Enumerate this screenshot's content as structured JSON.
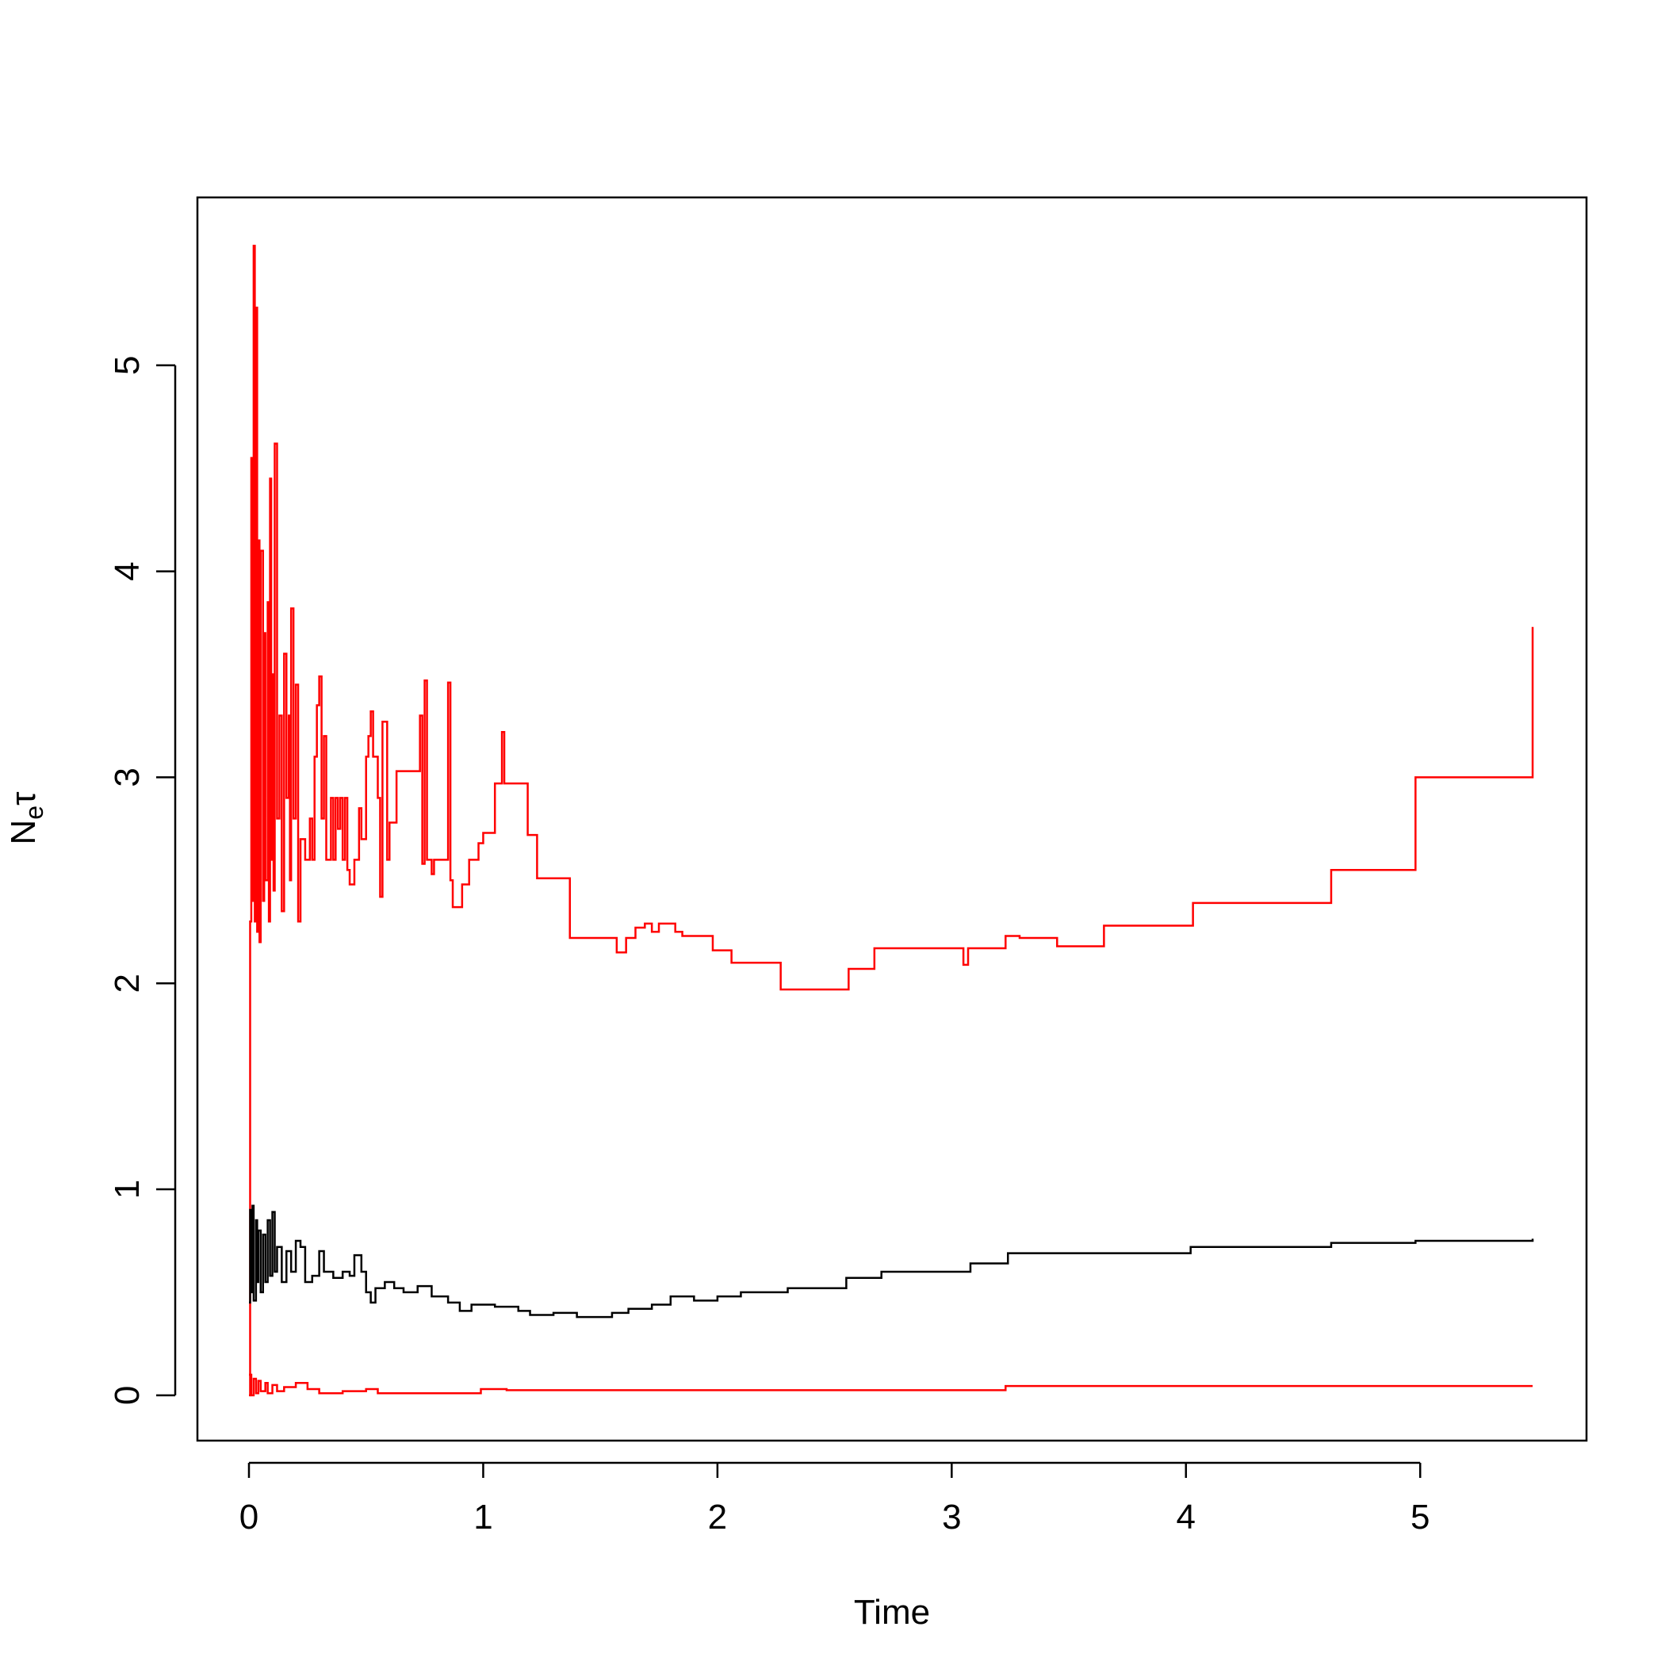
{
  "chart_data": {
    "type": "step",
    "xlabel": "Time",
    "ylabel": [
      "N",
      "e",
      "τ"
    ],
    "xlim": [
      -0.22,
      5.71
    ],
    "ylim": [
      -0.22,
      5.815
    ],
    "xticks": [
      0,
      1,
      2,
      3,
      4,
      5
    ],
    "yticks": [
      0,
      1,
      2,
      3,
      4,
      5
    ],
    "series": [
      {
        "color": "#ff0000",
        "x": [
          0,
          0.005,
          0.01,
          0.015,
          0.02,
          0.025,
          0.03,
          0.035,
          0.04,
          0.045,
          0.05,
          0.06,
          0.065,
          0.07,
          0.08,
          0.085,
          0.09,
          0.095,
          0.1,
          0.105,
          0.11,
          0.12,
          0.13,
          0.14,
          0.15,
          0.16,
          0.17,
          0.175,
          0.18,
          0.19,
          0.2,
          0.21,
          0.22,
          0.24,
          0.26,
          0.27,
          0.28,
          0.29,
          0.3,
          0.31,
          0.32,
          0.33,
          0.35,
          0.36,
          0.37,
          0.38,
          0.39,
          0.4,
          0.41,
          0.42,
          0.43,
          0.45,
          0.47,
          0.48,
          0.5,
          0.51,
          0.52,
          0.53,
          0.55,
          0.56,
          0.57,
          0.59,
          0.6,
          0.63,
          0.73,
          0.74,
          0.75,
          0.76,
          0.78,
          0.79,
          0.85,
          0.86,
          0.87,
          0.91,
          0.94,
          0.98,
          1.0,
          1.05,
          1.08,
          1.09,
          1.19,
          1.23,
          1.37,
          1.57,
          1.61,
          1.65,
          1.69,
          1.72,
          1.75,
          1.82,
          1.85,
          1.98,
          2.06,
          2.27,
          2.56,
          2.67,
          3.05,
          3.07,
          3.23,
          3.29,
          3.45,
          3.65,
          4.03,
          4.62,
          4.98,
          5.48
        ],
        "values": [
          0,
          2.3,
          4.55,
          2.4,
          5.58,
          2.3,
          5.28,
          2.25,
          4.15,
          2.2,
          4.1,
          2.4,
          3.7,
          2.5,
          3.85,
          2.3,
          4.45,
          2.6,
          3.5,
          2.45,
          4.62,
          2.8,
          3.3,
          2.35,
          3.6,
          2.9,
          3.3,
          2.5,
          3.82,
          2.8,
          3.45,
          2.3,
          2.7,
          2.6,
          2.8,
          2.6,
          3.1,
          3.35,
          3.49,
          2.8,
          3.2,
          2.6,
          2.9,
          2.6,
          2.9,
          2.75,
          2.9,
          2.6,
          2.9,
          2.55,
          2.48,
          2.6,
          2.85,
          2.7,
          3.1,
          3.2,
          3.32,
          3.1,
          2.9,
          2.42,
          3.27,
          2.6,
          2.78,
          3.03,
          3.3,
          2.58,
          3.47,
          2.6,
          2.53,
          2.6,
          3.46,
          2.5,
          2.37,
          2.48,
          2.6,
          2.68,
          2.73,
          2.97,
          3.22,
          2.97,
          2.72,
          2.51,
          2.22,
          2.15,
          2.22,
          2.27,
          2.29,
          2.25,
          2.29,
          2.25,
          2.23,
          2.16,
          2.1,
          1.97,
          2.07,
          2.17,
          2.09,
          2.17,
          2.23,
          2.22,
          2.18,
          2.28,
          2.39,
          2.55,
          3.0,
          3.73
        ]
      },
      {
        "color": "#000000",
        "x": [
          0,
          0.005,
          0.01,
          0.015,
          0.02,
          0.03,
          0.035,
          0.04,
          0.05,
          0.06,
          0.07,
          0.08,
          0.09,
          0.1,
          0.11,
          0.12,
          0.14,
          0.16,
          0.18,
          0.2,
          0.22,
          0.24,
          0.27,
          0.3,
          0.32,
          0.36,
          0.4,
          0.43,
          0.45,
          0.48,
          0.5,
          0.52,
          0.54,
          0.58,
          0.62,
          0.66,
          0.72,
          0.78,
          0.85,
          0.9,
          0.95,
          1.05,
          1.15,
          1.2,
          1.3,
          1.4,
          1.55,
          1.62,
          1.72,
          1.8,
          1.9,
          2.0,
          2.1,
          2.3,
          2.55,
          2.7,
          3.08,
          3.24,
          4.02,
          4.62,
          4.98,
          5.48
        ],
        "values": [
          0.45,
          0.9,
          0.5,
          0.92,
          0.46,
          0.85,
          0.55,
          0.8,
          0.5,
          0.78,
          0.55,
          0.85,
          0.58,
          0.89,
          0.6,
          0.72,
          0.55,
          0.7,
          0.6,
          0.75,
          0.72,
          0.55,
          0.58,
          0.7,
          0.6,
          0.57,
          0.6,
          0.58,
          0.68,
          0.6,
          0.5,
          0.45,
          0.52,
          0.55,
          0.52,
          0.5,
          0.53,
          0.48,
          0.45,
          0.41,
          0.44,
          0.43,
          0.41,
          0.39,
          0.4,
          0.38,
          0.4,
          0.42,
          0.44,
          0.48,
          0.46,
          0.48,
          0.5,
          0.52,
          0.57,
          0.6,
          0.64,
          0.69,
          0.72,
          0.74,
          0.75,
          0.76
        ]
      },
      {
        "color": "#ff0000",
        "x": [
          0,
          0.01,
          0.02,
          0.03,
          0.04,
          0.05,
          0.07,
          0.08,
          0.1,
          0.12,
          0.15,
          0.2,
          0.25,
          0.3,
          0.4,
          0.5,
          0.55,
          0.8,
          0.99,
          1.1,
          3.23,
          5.48
        ],
        "values": [
          0.1,
          0.0,
          0.08,
          0.01,
          0.07,
          0.02,
          0.06,
          0.01,
          0.05,
          0.02,
          0.04,
          0.06,
          0.03,
          0.01,
          0.02,
          0.03,
          0.01,
          0.01,
          0.03,
          0.025,
          0.045,
          0.045
        ]
      }
    ]
  }
}
